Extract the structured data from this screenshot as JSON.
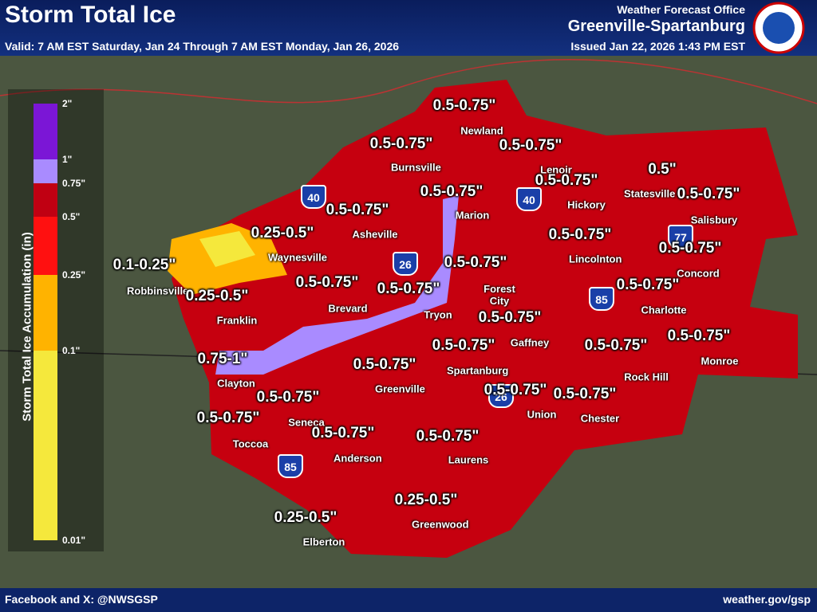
{
  "header": {
    "title": "Storm Total Ice",
    "valid": "Valid: 7 AM EST Saturday, Jan 24 Through 7 AM EST Monday, Jan 26, 2026",
    "office_line": "Weather Forecast Office",
    "office": "Greenville-Spartanburg",
    "issued": "Issued Jan 22, 2026 1:43 PM EST"
  },
  "legend": {
    "title": "Storm Total Ice Accumulation (in)",
    "ticks": [
      "2\"",
      "1\"",
      "0.75\"",
      "0.5\"",
      "0.25\"",
      "0.1\"",
      "0.01\""
    ],
    "colors": [
      "#7b16d6",
      "#a98bff",
      "#c00012",
      "#ff1010",
      "#ffb300",
      "#f5e83c"
    ]
  },
  "amounts": [
    "0.5-0.75\"",
    "0.5-0.75\"",
    "0.5-0.75\"",
    "0.5-0.75\"",
    "0.5-0.75\"",
    "0.5\"",
    "0.5-0.75\"",
    "0.5-0.75\"",
    "0.25-0.5\"",
    "0.5-0.75\"",
    "0.1-0.25\"",
    "0.5-0.75\"",
    "0.5-0.75\"",
    "0.5-0.75\"",
    "0.5-0.75\"",
    "0.25-0.5\"",
    "0.5-0.75\"",
    "0.5-0.75\"",
    "0.5-0.75\"",
    "0.5-0.75\"",
    "0.5-0.75\"",
    "0.75-1\"",
    "0.5-0.75\"",
    "0.5-0.75\"",
    "0.5-0.75\"",
    "0.5-0.75\"",
    "0.5-0.75\"",
    "0.5-0.75\"",
    "0.5-0.75\"",
    "0.25-0.5\"",
    "0.25-0.5\""
  ],
  "cities": [
    "Newland",
    "Burnsville",
    "Lenoir",
    "Statesville",
    "Marion",
    "Hickory",
    "Asheville",
    "Salisbury",
    "Waynesville",
    "Lincolnton",
    "Concord",
    "Robbinsville",
    "Brevard",
    "Forest City",
    "Charlotte",
    "Tryon",
    "Franklin",
    "Gaffney",
    "Spartanburg",
    "Rock Hill",
    "Monroe",
    "Clayton",
    "Greenville",
    "Union",
    "Chester",
    "Seneca",
    "Toccoa",
    "Anderson",
    "Laurens",
    "Greenwood",
    "Elberton"
  ],
  "shields": [
    "40",
    "40",
    "26",
    "26",
    "77",
    "85",
    "85"
  ],
  "footer": {
    "left": "Facebook and X: @NWSGSP",
    "right": "weather.gov/gsp"
  }
}
